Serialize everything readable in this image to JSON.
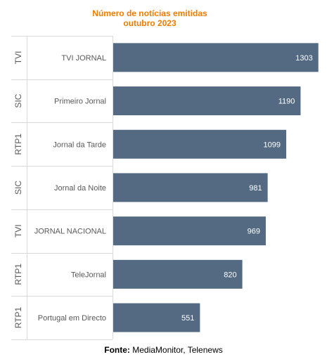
{
  "chart_data": {
    "type": "bar",
    "orientation": "horizontal",
    "title": "Número de notícias emitidas",
    "subtitle": "outubro 2023",
    "categories": [
      "TVI JORNAL",
      "Primeiro Jornal",
      "Jornal da Tarde",
      "Jornal da Noite",
      "JORNAL NACIONAL",
      "TeleJornal",
      "Portugal em Directo"
    ],
    "groups": [
      "TVI",
      "SIC",
      "RTP1",
      "SIC",
      "TVI",
      "RTP1",
      "RTP1"
    ],
    "values": [
      1303,
      1190,
      1099,
      981,
      969,
      820,
      551
    ],
    "xlim": [
      0,
      1340
    ],
    "grid": false,
    "legend": "none",
    "bar_color": "#536a82",
    "label_color": "#ffffff"
  },
  "source": {
    "prefix": "Fonte:",
    "text": " MediaMonitor, Telenews"
  },
  "colors": {
    "title": "#f07c00",
    "axis_text": "#595959",
    "divider": "#d9d9d9"
  }
}
